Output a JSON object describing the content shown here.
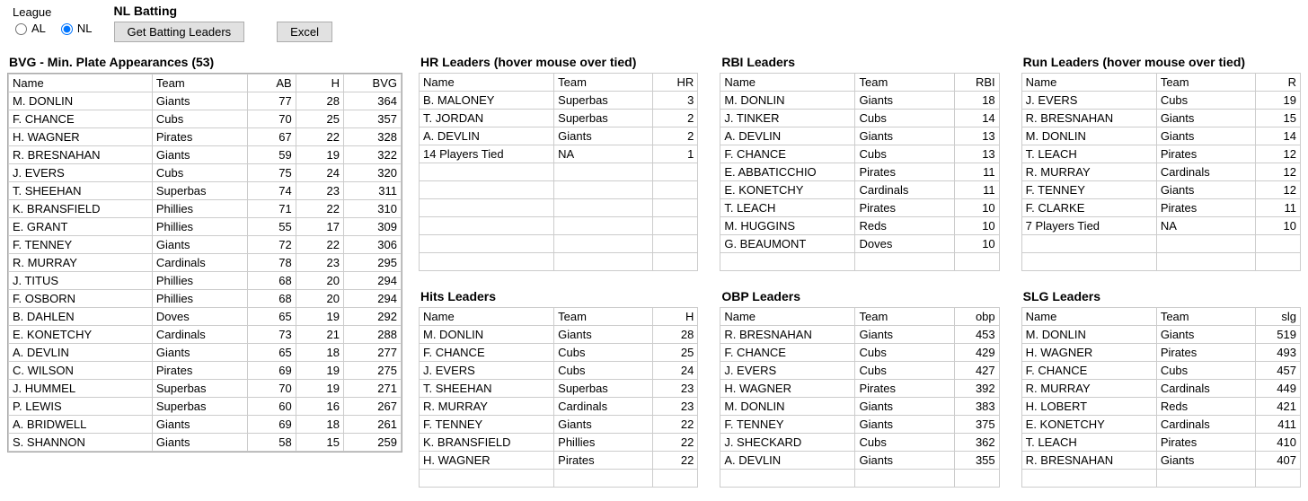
{
  "league": {
    "label": "League",
    "al": "AL",
    "nl": "NL",
    "selected": "NL"
  },
  "header": {
    "title": "NL Batting",
    "btn_leaders": "Get Batting Leaders",
    "btn_excel": "Excel"
  },
  "bvg": {
    "title": "BVG - Min. Plate Appearances (53)",
    "columns": [
      "Name",
      "Team",
      "AB",
      "H",
      "BVG"
    ],
    "col_widths": [
      "150px",
      "100px",
      "50px",
      "50px",
      "60px"
    ],
    "num_cols": [
      2,
      3,
      4
    ],
    "rows": [
      [
        "M. DONLIN",
        "Giants",
        "77",
        "28",
        "364"
      ],
      [
        "F. CHANCE",
        "Cubs",
        "70",
        "25",
        "357"
      ],
      [
        "H. WAGNER",
        "Pirates",
        "67",
        "22",
        "328"
      ],
      [
        "R. BRESNAHAN",
        "Giants",
        "59",
        "19",
        "322"
      ],
      [
        "J. EVERS",
        "Cubs",
        "75",
        "24",
        "320"
      ],
      [
        "T. SHEEHAN",
        "Superbas",
        "74",
        "23",
        "311"
      ],
      [
        "K. BRANSFIELD",
        "Phillies",
        "71",
        "22",
        "310"
      ],
      [
        "E. GRANT",
        "Phillies",
        "55",
        "17",
        "309"
      ],
      [
        "F. TENNEY",
        "Giants",
        "72",
        "22",
        "306"
      ],
      [
        "R. MURRAY",
        "Cardinals",
        "78",
        "23",
        "295"
      ],
      [
        "J. TITUS",
        "Phillies",
        "68",
        "20",
        "294"
      ],
      [
        "F. OSBORN",
        "Phillies",
        "68",
        "20",
        "294"
      ],
      [
        "B. DAHLEN",
        "Doves",
        "65",
        "19",
        "292"
      ],
      [
        "E. KONETCHY",
        "Cardinals",
        "73",
        "21",
        "288"
      ],
      [
        "A. DEVLIN",
        "Giants",
        "65",
        "18",
        "277"
      ],
      [
        "C. WILSON",
        "Pirates",
        "69",
        "19",
        "275"
      ],
      [
        "J. HUMMEL",
        "Superbas",
        "70",
        "19",
        "271"
      ],
      [
        "P. LEWIS",
        "Superbas",
        "60",
        "16",
        "267"
      ],
      [
        "A. BRIDWELL",
        "Giants",
        "69",
        "18",
        "261"
      ],
      [
        "S. SHANNON",
        "Giants",
        "58",
        "15",
        "259"
      ]
    ]
  },
  "hr": {
    "title": "HR Leaders (hover mouse over tied)",
    "columns": [
      "Name",
      "Team",
      "HR"
    ],
    "col_widths": [
      "150px",
      "110px",
      "50px"
    ],
    "num_cols": [
      2
    ],
    "empty_rows": 6,
    "rows": [
      [
        "B. MALONEY",
        "Superbas",
        "3"
      ],
      [
        "T. JORDAN",
        "Superbas",
        "2"
      ],
      [
        "A. DEVLIN",
        "Giants",
        "2"
      ],
      [
        "14 Players Tied",
        "NA",
        "1"
      ]
    ]
  },
  "rbi": {
    "title": "RBI Leaders",
    "columns": [
      "Name",
      "Team",
      "RBI"
    ],
    "col_widths": [
      "150px",
      "110px",
      "50px"
    ],
    "num_cols": [
      2
    ],
    "empty_rows": 1,
    "rows": [
      [
        "M. DONLIN",
        "Giants",
        "18"
      ],
      [
        "J. TINKER",
        "Cubs",
        "14"
      ],
      [
        "A. DEVLIN",
        "Giants",
        "13"
      ],
      [
        "F. CHANCE",
        "Cubs",
        "13"
      ],
      [
        "E. ABBATICCHIO",
        "Pirates",
        "11"
      ],
      [
        "E. KONETCHY",
        "Cardinals",
        "11"
      ],
      [
        "T. LEACH",
        "Pirates",
        "10"
      ],
      [
        "M. HUGGINS",
        "Reds",
        "10"
      ],
      [
        "G. BEAUMONT",
        "Doves",
        "10"
      ]
    ]
  },
  "run": {
    "title": "Run Leaders (hover mouse over tied)",
    "columns": [
      "Name",
      "Team",
      "R"
    ],
    "col_widths": [
      "150px",
      "110px",
      "50px"
    ],
    "num_cols": [
      2
    ],
    "empty_rows": 2,
    "rows": [
      [
        "J. EVERS",
        "Cubs",
        "19"
      ],
      [
        "R. BRESNAHAN",
        "Giants",
        "15"
      ],
      [
        "M. DONLIN",
        "Giants",
        "14"
      ],
      [
        "T. LEACH",
        "Pirates",
        "12"
      ],
      [
        "R. MURRAY",
        "Cardinals",
        "12"
      ],
      [
        "F. TENNEY",
        "Giants",
        "12"
      ],
      [
        "F. CLARKE",
        "Pirates",
        "11"
      ],
      [
        "7 Players Tied",
        "NA",
        "10"
      ]
    ]
  },
  "hits": {
    "title": "Hits Leaders",
    "columns": [
      "Name",
      "Team",
      "H"
    ],
    "col_widths": [
      "150px",
      "110px",
      "50px"
    ],
    "num_cols": [
      2
    ],
    "empty_rows": 1,
    "rows": [
      [
        "M. DONLIN",
        "Giants",
        "28"
      ],
      [
        "F. CHANCE",
        "Cubs",
        "25"
      ],
      [
        "J. EVERS",
        "Cubs",
        "24"
      ],
      [
        "T. SHEEHAN",
        "Superbas",
        "23"
      ],
      [
        "R. MURRAY",
        "Cardinals",
        "23"
      ],
      [
        "F. TENNEY",
        "Giants",
        "22"
      ],
      [
        "K. BRANSFIELD",
        "Phillies",
        "22"
      ],
      [
        "H. WAGNER",
        "Pirates",
        "22"
      ]
    ]
  },
  "obp": {
    "title": "OBP Leaders",
    "columns": [
      "Name",
      "Team",
      "obp"
    ],
    "col_widths": [
      "150px",
      "110px",
      "50px"
    ],
    "num_cols": [
      2
    ],
    "empty_rows": 1,
    "rows": [
      [
        "R. BRESNAHAN",
        "Giants",
        "453"
      ],
      [
        "F. CHANCE",
        "Cubs",
        "429"
      ],
      [
        "J. EVERS",
        "Cubs",
        "427"
      ],
      [
        "H. WAGNER",
        "Pirates",
        "392"
      ],
      [
        "M. DONLIN",
        "Giants",
        "383"
      ],
      [
        "F. TENNEY",
        "Giants",
        "375"
      ],
      [
        "J. SHECKARD",
        "Cubs",
        "362"
      ],
      [
        "A. DEVLIN",
        "Giants",
        "355"
      ]
    ]
  },
  "slg": {
    "title": "SLG Leaders",
    "columns": [
      "Name",
      "Team",
      "slg"
    ],
    "col_widths": [
      "150px",
      "110px",
      "50px"
    ],
    "num_cols": [
      2
    ],
    "empty_rows": 1,
    "rows": [
      [
        "M. DONLIN",
        "Giants",
        "519"
      ],
      [
        "H. WAGNER",
        "Pirates",
        "493"
      ],
      [
        "F. CHANCE",
        "Cubs",
        "457"
      ],
      [
        "R. MURRAY",
        "Cardinals",
        "449"
      ],
      [
        "H. LOBERT",
        "Reds",
        "421"
      ],
      [
        "E. KONETCHY",
        "Cardinals",
        "411"
      ],
      [
        "T. LEACH",
        "Pirates",
        "410"
      ],
      [
        "R. BRESNAHAN",
        "Giants",
        "407"
      ]
    ]
  }
}
